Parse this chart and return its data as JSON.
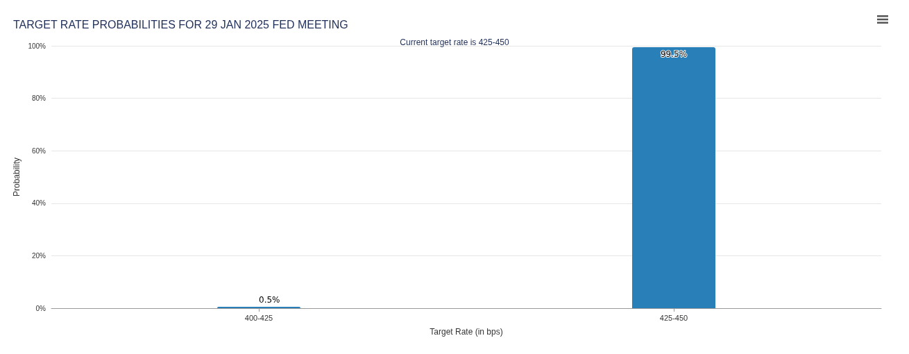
{
  "chart_data": {
    "type": "bar",
    "title": "TARGET RATE PROBABILITIES FOR 29 JAN 2025 FED MEETING",
    "subtitle": "Current target rate is 425-450",
    "xlabel": "Target Rate (in bps)",
    "ylabel": "Probability",
    "categories": [
      "400-425",
      "425-450"
    ],
    "series": [
      {
        "color": "#2980b9",
        "values": [
          0.5,
          99.5
        ],
        "value_labels": [
          "0.5%",
          "99.5%"
        ]
      }
    ],
    "ylim": [
      0,
      100
    ],
    "yticks": [
      {
        "value": 0,
        "label": "0%"
      },
      {
        "value": 20,
        "label": "20%"
      },
      {
        "value": 40,
        "label": "40%"
      },
      {
        "value": 60,
        "label": "60%"
      },
      {
        "value": 80,
        "label": "80%"
      },
      {
        "value": 100,
        "label": "100%"
      }
    ],
    "grid": "y"
  }
}
